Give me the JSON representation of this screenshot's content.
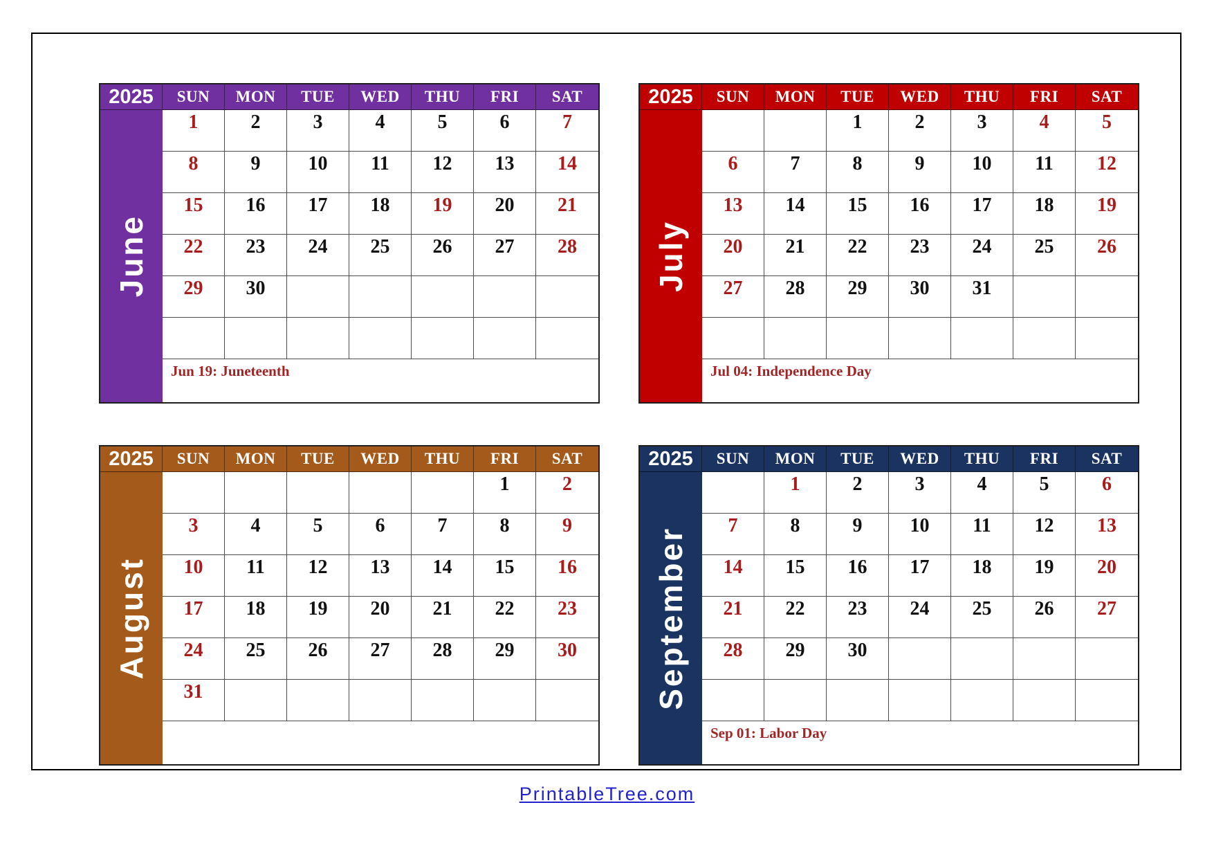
{
  "colors": {
    "weekend_date": "#A81C1C",
    "weekday_date": "#111111",
    "holiday_note": "#A02626",
    "footer_link": "#2222CC",
    "grid_line": "#4D4D4D"
  },
  "footer": {
    "link_label": "PrintableTree.com"
  },
  "calendars": [
    {
      "id": "june",
      "year": "2025",
      "month": "June",
      "color": "#7030A0",
      "day_headers": [
        "SUN",
        "MON",
        "TUE",
        "WED",
        "THU",
        "FRI",
        "SAT"
      ],
      "note": "Jun 19: Juneteenth",
      "weeks": [
        [
          {
            "t": "1",
            "r": 1
          },
          {
            "t": "2"
          },
          {
            "t": "3"
          },
          {
            "t": "4"
          },
          {
            "t": "5"
          },
          {
            "t": "6"
          },
          {
            "t": "7",
            "r": 1
          }
        ],
        [
          {
            "t": "8",
            "r": 1
          },
          {
            "t": "9"
          },
          {
            "t": "10"
          },
          {
            "t": "11"
          },
          {
            "t": "12"
          },
          {
            "t": "13"
          },
          {
            "t": "14",
            "r": 1
          }
        ],
        [
          {
            "t": "15",
            "r": 1
          },
          {
            "t": "16"
          },
          {
            "t": "17"
          },
          {
            "t": "18"
          },
          {
            "t": "19",
            "r": 1
          },
          {
            "t": "20"
          },
          {
            "t": "21",
            "r": 1
          }
        ],
        [
          {
            "t": "22",
            "r": 1
          },
          {
            "t": "23"
          },
          {
            "t": "24"
          },
          {
            "t": "25"
          },
          {
            "t": "26"
          },
          {
            "t": "27"
          },
          {
            "t": "28",
            "r": 1
          }
        ],
        [
          {
            "t": "29",
            "r": 1
          },
          {
            "t": "30"
          },
          {
            "t": ""
          },
          {
            "t": ""
          },
          {
            "t": ""
          },
          {
            "t": ""
          },
          {
            "t": ""
          }
        ],
        [
          {
            "t": ""
          },
          {
            "t": ""
          },
          {
            "t": ""
          },
          {
            "t": ""
          },
          {
            "t": ""
          },
          {
            "t": ""
          },
          {
            "t": ""
          }
        ]
      ]
    },
    {
      "id": "july",
      "year": "2025",
      "month": "July",
      "color": "#C00000",
      "day_headers": [
        "SUN",
        "MON",
        "TUE",
        "WED",
        "THU",
        "FRI",
        "SAT"
      ],
      "note": "Jul 04: Independence Day",
      "weeks": [
        [
          {
            "t": ""
          },
          {
            "t": ""
          },
          {
            "t": "1"
          },
          {
            "t": "2"
          },
          {
            "t": "3"
          },
          {
            "t": "4",
            "r": 1
          },
          {
            "t": "5",
            "r": 1
          }
        ],
        [
          {
            "t": "6",
            "r": 1
          },
          {
            "t": "7"
          },
          {
            "t": "8"
          },
          {
            "t": "9"
          },
          {
            "t": "10"
          },
          {
            "t": "11"
          },
          {
            "t": "12",
            "r": 1
          }
        ],
        [
          {
            "t": "13",
            "r": 1
          },
          {
            "t": "14"
          },
          {
            "t": "15"
          },
          {
            "t": "16"
          },
          {
            "t": "17"
          },
          {
            "t": "18"
          },
          {
            "t": "19",
            "r": 1
          }
        ],
        [
          {
            "t": "20",
            "r": 1
          },
          {
            "t": "21"
          },
          {
            "t": "22"
          },
          {
            "t": "23"
          },
          {
            "t": "24"
          },
          {
            "t": "25"
          },
          {
            "t": "26",
            "r": 1
          }
        ],
        [
          {
            "t": "27",
            "r": 1
          },
          {
            "t": "28"
          },
          {
            "t": "29"
          },
          {
            "t": "30"
          },
          {
            "t": "31"
          },
          {
            "t": ""
          },
          {
            "t": ""
          }
        ],
        [
          {
            "t": ""
          },
          {
            "t": ""
          },
          {
            "t": ""
          },
          {
            "t": ""
          },
          {
            "t": ""
          },
          {
            "t": ""
          },
          {
            "t": ""
          }
        ]
      ]
    },
    {
      "id": "august",
      "year": "2025",
      "month": "August",
      "color": "#A35A1A",
      "day_headers": [
        "SUN",
        "MON",
        "TUE",
        "WED",
        "THU",
        "FRI",
        "SAT"
      ],
      "note": "",
      "weeks": [
        [
          {
            "t": ""
          },
          {
            "t": ""
          },
          {
            "t": ""
          },
          {
            "t": ""
          },
          {
            "t": ""
          },
          {
            "t": "1"
          },
          {
            "t": "2",
            "r": 1
          }
        ],
        [
          {
            "t": "3",
            "r": 1
          },
          {
            "t": "4"
          },
          {
            "t": "5"
          },
          {
            "t": "6"
          },
          {
            "t": "7"
          },
          {
            "t": "8"
          },
          {
            "t": "9",
            "r": 1
          }
        ],
        [
          {
            "t": "10",
            "r": 1
          },
          {
            "t": "11"
          },
          {
            "t": "12"
          },
          {
            "t": "13"
          },
          {
            "t": "14"
          },
          {
            "t": "15"
          },
          {
            "t": "16",
            "r": 1
          }
        ],
        [
          {
            "t": "17",
            "r": 1
          },
          {
            "t": "18"
          },
          {
            "t": "19"
          },
          {
            "t": "20"
          },
          {
            "t": "21"
          },
          {
            "t": "22"
          },
          {
            "t": "23",
            "r": 1
          }
        ],
        [
          {
            "t": "24",
            "r": 1
          },
          {
            "t": "25"
          },
          {
            "t": "26"
          },
          {
            "t": "27"
          },
          {
            "t": "28"
          },
          {
            "t": "29"
          },
          {
            "t": "30",
            "r": 1
          }
        ],
        [
          {
            "t": "31",
            "r": 1
          },
          {
            "t": ""
          },
          {
            "t": ""
          },
          {
            "t": ""
          },
          {
            "t": ""
          },
          {
            "t": ""
          },
          {
            "t": ""
          }
        ]
      ]
    },
    {
      "id": "september",
      "year": "2025",
      "month": "September",
      "color": "#1A3360",
      "day_headers": [
        "SUN",
        "MON",
        "TUE",
        "WED",
        "THU",
        "FRI",
        "SAT"
      ],
      "note": "Sep 01: Labor Day",
      "weeks": [
        [
          {
            "t": ""
          },
          {
            "t": "1",
            "r": 1
          },
          {
            "t": "2"
          },
          {
            "t": "3"
          },
          {
            "t": "4"
          },
          {
            "t": "5"
          },
          {
            "t": "6",
            "r": 1
          }
        ],
        [
          {
            "t": "7",
            "r": 1
          },
          {
            "t": "8"
          },
          {
            "t": "9"
          },
          {
            "t": "10"
          },
          {
            "t": "11"
          },
          {
            "t": "12"
          },
          {
            "t": "13",
            "r": 1
          }
        ],
        [
          {
            "t": "14",
            "r": 1
          },
          {
            "t": "15"
          },
          {
            "t": "16"
          },
          {
            "t": "17"
          },
          {
            "t": "18"
          },
          {
            "t": "19"
          },
          {
            "t": "20",
            "r": 1
          }
        ],
        [
          {
            "t": "21",
            "r": 1
          },
          {
            "t": "22"
          },
          {
            "t": "23"
          },
          {
            "t": "24"
          },
          {
            "t": "25"
          },
          {
            "t": "26"
          },
          {
            "t": "27",
            "r": 1
          }
        ],
        [
          {
            "t": "28",
            "r": 1
          },
          {
            "t": "29"
          },
          {
            "t": "30"
          },
          {
            "t": ""
          },
          {
            "t": ""
          },
          {
            "t": ""
          },
          {
            "t": ""
          }
        ],
        [
          {
            "t": ""
          },
          {
            "t": ""
          },
          {
            "t": ""
          },
          {
            "t": ""
          },
          {
            "t": ""
          },
          {
            "t": ""
          },
          {
            "t": ""
          }
        ]
      ]
    }
  ]
}
